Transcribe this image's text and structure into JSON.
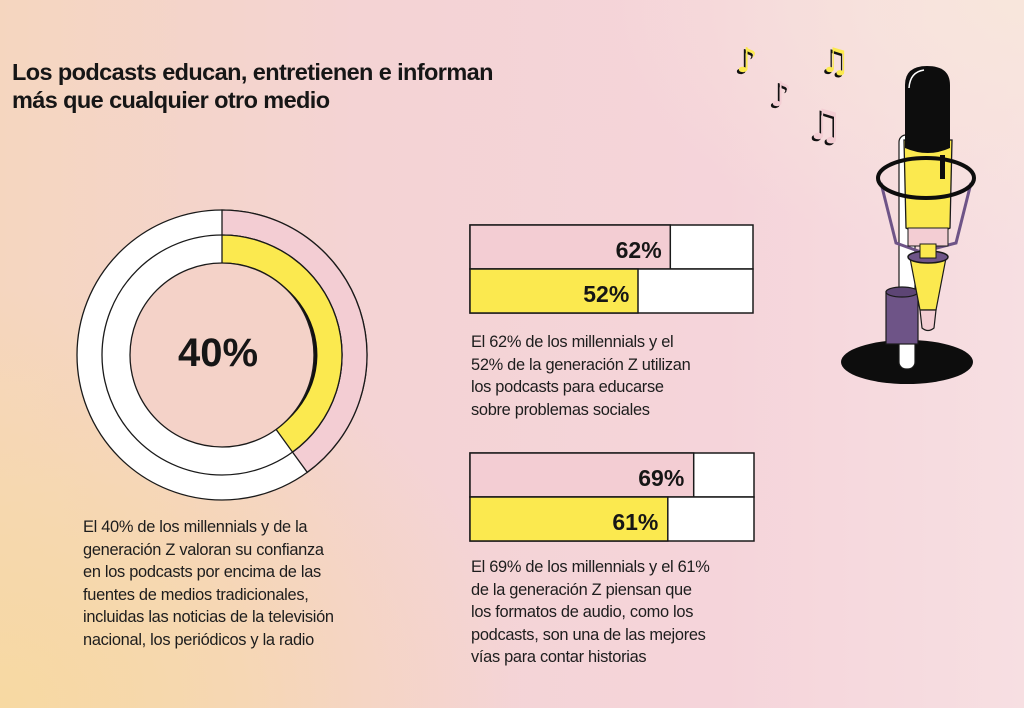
{
  "title": [
    "Los podcasts educan, entretienen e informan",
    "más que cualquier otro medio"
  ],
  "colors": {
    "millennials": "#f3cdd3",
    "gen_z": "#fbe94f",
    "empty": "#ffffff",
    "outline": "#1a1a1a",
    "mic_purple": "#6e5487"
  },
  "chart_data": [
    {
      "type": "pie",
      "subtype": "donut",
      "center_label": "40%",
      "value": 40,
      "series": [
        {
          "name": "millennials",
          "value": 40
        },
        {
          "name": "generación Z",
          "value": 40
        }
      ],
      "caption": [
        "El 40% de los millennials y de la",
        "generación Z valoran su confianza",
        "en los podcasts por encima de las",
        "fuentes de medios tradicionales,",
        "incluidas las noticias de la televisión",
        "nacional, los periódicos y la radio"
      ]
    },
    {
      "type": "bar",
      "orientation": "horizontal",
      "xlim": [
        0,
        87.6
      ],
      "series": [
        {
          "name": "millennials",
          "value": 62,
          "label": "62%"
        },
        {
          "name": "generación Z",
          "value": 52,
          "label": "52%"
        }
      ],
      "caption": [
        "El 62% de los millennials y el",
        "52% de la generación Z utilizan",
        "los podcasts para educarse",
        "sobre problemas sociales"
      ]
    },
    {
      "type": "bar",
      "orientation": "horizontal",
      "xlim": [
        0,
        87.6
      ],
      "series": [
        {
          "name": "millennials",
          "value": 69,
          "label": "69%"
        },
        {
          "name": "generación Z",
          "value": 61,
          "label": "61%"
        }
      ],
      "caption": [
        "El 69% de los millennials y el 61%",
        "de la generación Z piensan que",
        "los formatos de audio, como los",
        "podcasts, son una de las mejores",
        "vías para contar historias"
      ]
    }
  ],
  "illustration": {
    "icons": [
      "music-note-icon",
      "music-notes-icon",
      "microphone-icon"
    ]
  }
}
